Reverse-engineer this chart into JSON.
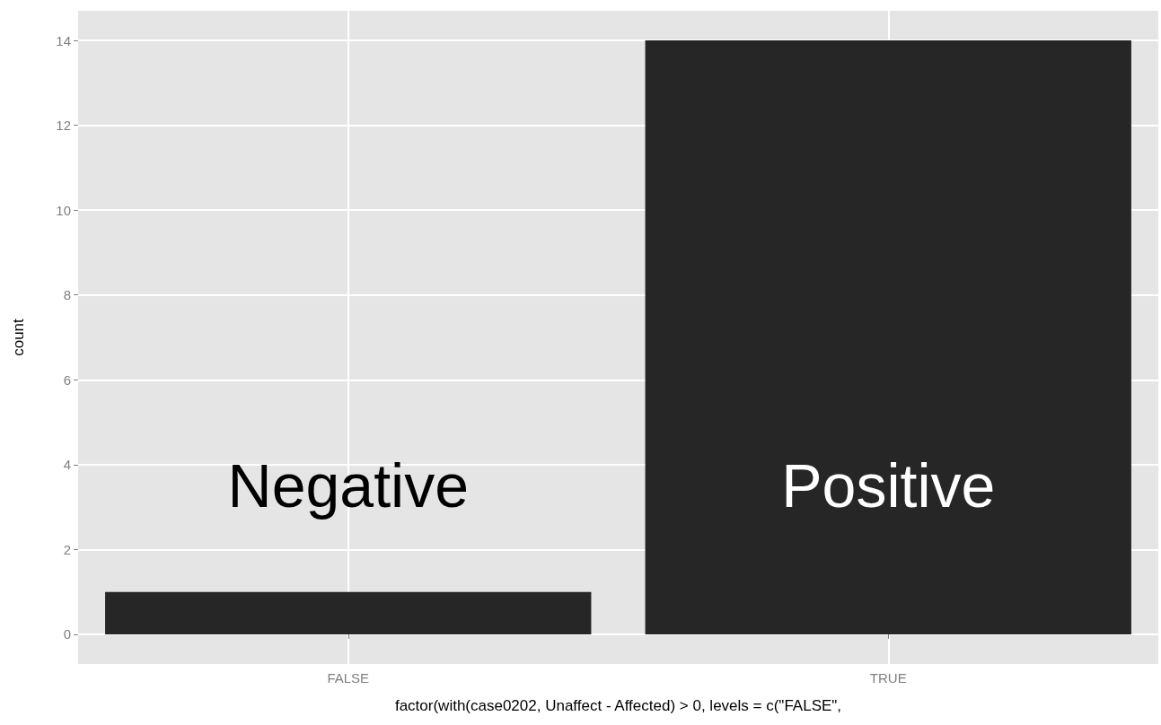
{
  "chart_data": {
    "type": "bar",
    "categories": [
      "FALSE",
      "TRUE"
    ],
    "values": [
      1,
      14
    ],
    "color": "#262626",
    "ylim": [
      -0.7,
      14.7
    ],
    "yticks": [
      0,
      2,
      4,
      6,
      8,
      10,
      12,
      14
    ],
    "grid": true,
    "xlabel": "factor(with(case0202, Unaffect - Affected) > 0, levels = c(\"FALSE\",",
    "ylabel": "count",
    "annotations": [
      "Negative",
      "Positive"
    ]
  }
}
